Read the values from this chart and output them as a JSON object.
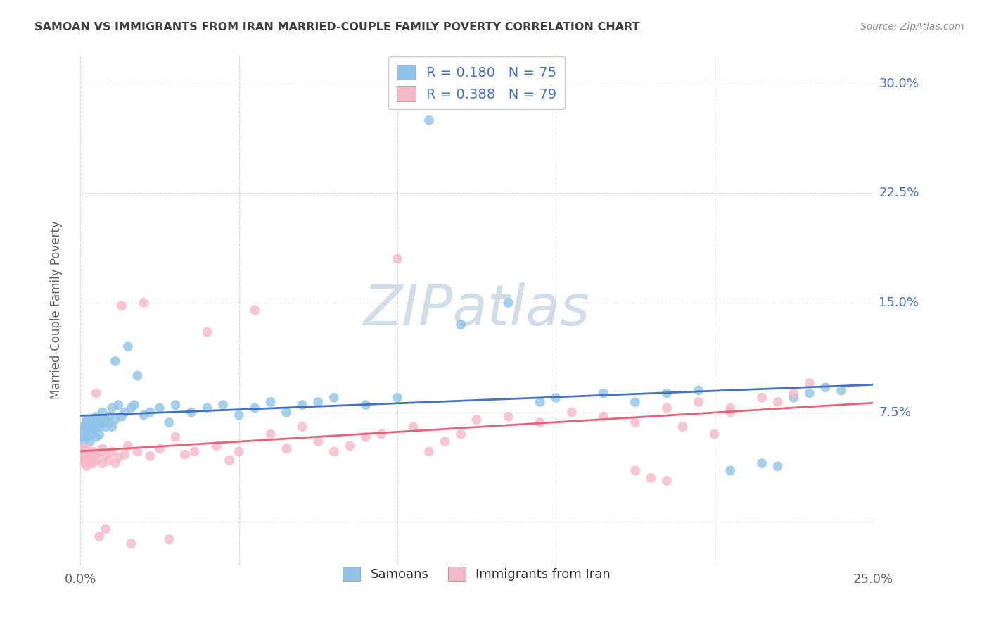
{
  "title": "SAMOAN VS IMMIGRANTS FROM IRAN MARRIED-COUPLE FAMILY POVERTY CORRELATION CHART",
  "source": "Source: ZipAtlas.com",
  "ylabel": "Married-Couple Family Poverty",
  "x_min": 0.0,
  "x_max": 0.25,
  "y_min": -0.03,
  "y_max": 0.32,
  "y_ticks": [
    0.0,
    0.075,
    0.15,
    0.225,
    0.3
  ],
  "y_tick_labels_right": [
    "7.5%",
    "15.0%",
    "22.5%",
    "30.0%"
  ],
  "y_tick_right_positions": [
    0.075,
    0.15,
    0.225,
    0.3
  ],
  "x_ticks": [
    0.0,
    0.05,
    0.1,
    0.15,
    0.2,
    0.25
  ],
  "x_tick_labels": [
    "0.0%",
    "",
    "",
    "",
    "",
    "25.0%"
  ],
  "legend_r_blue": "R = 0.180",
  "legend_n_blue": "N = 75",
  "legend_r_pink": "R = 0.388",
  "legend_n_pink": "N = 79",
  "legend_label_blue": "Samoans",
  "legend_label_pink": "Immigrants from Iran",
  "color_blue_scatter": "#90c4e8",
  "color_pink_scatter": "#f5b8c8",
  "color_blue_line": "#4472c4",
  "color_pink_line": "#e8607a",
  "color_text_blue": "#4472c4",
  "color_title": "#404040",
  "color_source": "#909090",
  "color_ylabel": "#606060",
  "color_grid": "#d8d8d8",
  "watermark_text": "ZIPatlas",
  "watermark_color": "#d0dce8",
  "background": "#ffffff",
  "samoans_x": [
    0.0,
    0.0,
    0.001,
    0.001,
    0.001,
    0.001,
    0.002,
    0.002,
    0.002,
    0.002,
    0.002,
    0.003,
    0.003,
    0.003,
    0.003,
    0.004,
    0.004,
    0.004,
    0.005,
    0.005,
    0.005,
    0.005,
    0.006,
    0.006,
    0.006,
    0.007,
    0.007,
    0.008,
    0.008,
    0.009,
    0.009,
    0.01,
    0.01,
    0.011,
    0.011,
    0.012,
    0.013,
    0.014,
    0.015,
    0.016,
    0.017,
    0.018,
    0.02,
    0.022,
    0.025,
    0.028,
    0.03,
    0.035,
    0.04,
    0.045,
    0.05,
    0.055,
    0.06,
    0.065,
    0.07,
    0.075,
    0.08,
    0.09,
    0.1,
    0.11,
    0.12,
    0.135,
    0.145,
    0.15,
    0.165,
    0.175,
    0.185,
    0.195,
    0.205,
    0.215,
    0.22,
    0.225,
    0.23,
    0.235,
    0.24
  ],
  "samoans_y": [
    0.06,
    0.065,
    0.06,
    0.063,
    0.058,
    0.055,
    0.065,
    0.062,
    0.068,
    0.07,
    0.058,
    0.063,
    0.06,
    0.065,
    0.055,
    0.07,
    0.065,
    0.06,
    0.068,
    0.065,
    0.072,
    0.058,
    0.07,
    0.065,
    0.06,
    0.075,
    0.068,
    0.07,
    0.065,
    0.072,
    0.068,
    0.078,
    0.065,
    0.11,
    0.07,
    0.08,
    0.072,
    0.075,
    0.12,
    0.078,
    0.08,
    0.1,
    0.073,
    0.075,
    0.078,
    0.068,
    0.08,
    0.075,
    0.078,
    0.08,
    0.073,
    0.078,
    0.082,
    0.075,
    0.08,
    0.082,
    0.085,
    0.08,
    0.085,
    0.275,
    0.135,
    0.15,
    0.082,
    0.085,
    0.088,
    0.082,
    0.088,
    0.09,
    0.035,
    0.04,
    0.038,
    0.085,
    0.088,
    0.092,
    0.09
  ],
  "iran_x": [
    0.0,
    0.0,
    0.001,
    0.001,
    0.001,
    0.001,
    0.002,
    0.002,
    0.002,
    0.002,
    0.002,
    0.003,
    0.003,
    0.003,
    0.004,
    0.004,
    0.004,
    0.005,
    0.005,
    0.005,
    0.006,
    0.006,
    0.007,
    0.007,
    0.008,
    0.008,
    0.009,
    0.01,
    0.011,
    0.012,
    0.013,
    0.014,
    0.015,
    0.016,
    0.018,
    0.02,
    0.022,
    0.025,
    0.028,
    0.03,
    0.033,
    0.036,
    0.04,
    0.043,
    0.047,
    0.05,
    0.055,
    0.06,
    0.065,
    0.07,
    0.075,
    0.08,
    0.085,
    0.09,
    0.095,
    0.1,
    0.105,
    0.11,
    0.115,
    0.12,
    0.125,
    0.135,
    0.145,
    0.155,
    0.165,
    0.175,
    0.185,
    0.195,
    0.205,
    0.215,
    0.22,
    0.225,
    0.23,
    0.19,
    0.2,
    0.205,
    0.175,
    0.18,
    0.185
  ],
  "iran_y": [
    0.048,
    0.05,
    0.045,
    0.042,
    0.05,
    0.04,
    0.048,
    0.042,
    0.05,
    0.038,
    0.045,
    0.04,
    0.046,
    0.042,
    0.048,
    0.04,
    0.044,
    0.046,
    0.042,
    0.088,
    0.048,
    -0.01,
    0.05,
    0.04,
    0.045,
    -0.005,
    0.042,
    0.048,
    0.04,
    0.044,
    0.148,
    0.046,
    0.052,
    -0.015,
    0.048,
    0.15,
    0.045,
    0.05,
    -0.012,
    0.058,
    0.046,
    0.048,
    0.13,
    0.052,
    0.042,
    0.048,
    0.145,
    0.06,
    0.05,
    0.065,
    0.055,
    0.048,
    0.052,
    0.058,
    0.06,
    0.18,
    0.065,
    0.048,
    0.055,
    0.06,
    0.07,
    0.072,
    0.068,
    0.075,
    0.072,
    0.068,
    0.078,
    0.082,
    0.078,
    0.085,
    0.082,
    0.088,
    0.095,
    0.065,
    0.06,
    0.075,
    0.035,
    0.03,
    0.028
  ]
}
